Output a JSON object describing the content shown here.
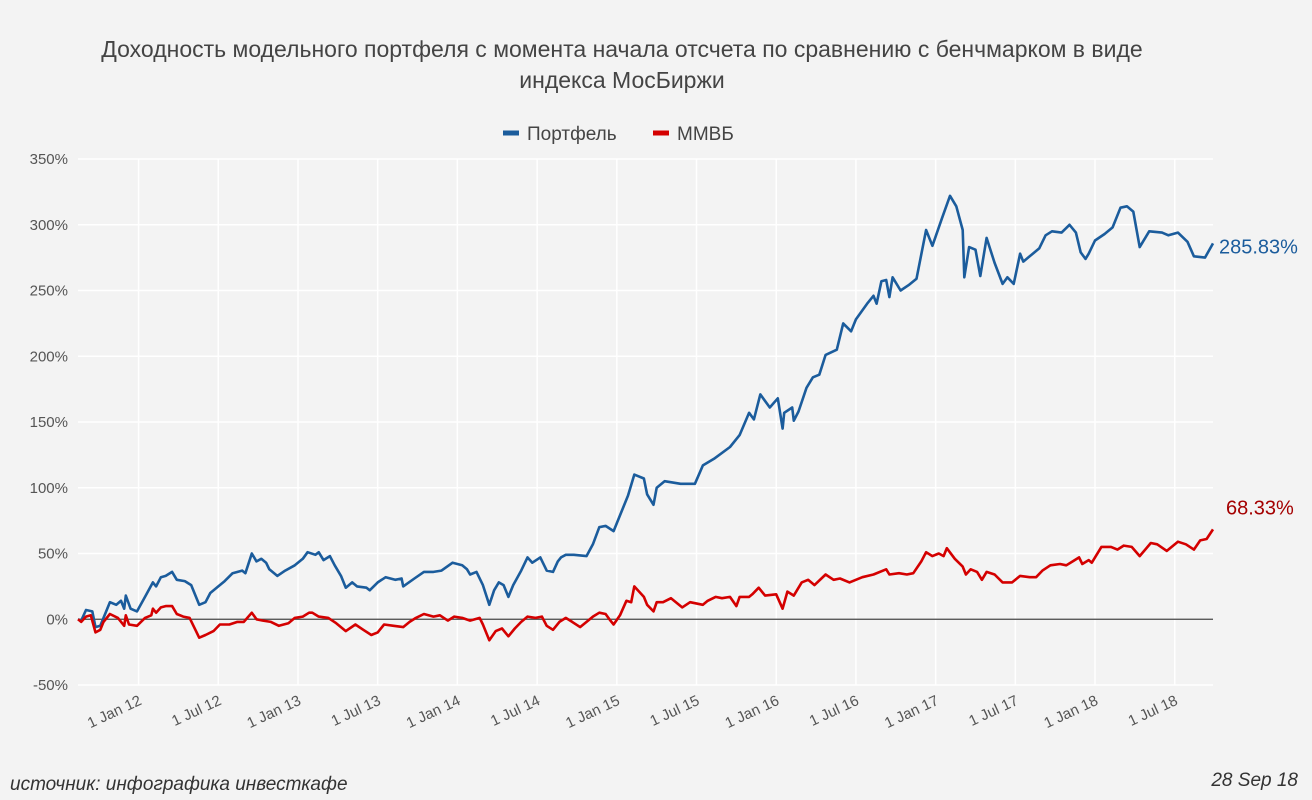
{
  "chart_data": {
    "type": "line",
    "title_lines": [
      "Доходность модельного портфеля с момента начала отсчета по сравнению с бенчмарком в виде",
      "индекса МосБиржи"
    ],
    "xlabel": "",
    "ylabel": "",
    "x_unit": "decimal year",
    "xlim": [
      2011.62,
      2018.74
    ],
    "ylim": [
      -50,
      350
    ],
    "yticks": [
      -50,
      0,
      50,
      100,
      150,
      200,
      250,
      300,
      350
    ],
    "ytick_labels": [
      "-50%",
      "0%",
      "50%",
      "100%",
      "150%",
      "200%",
      "250%",
      "300%",
      "350%"
    ],
    "xticks": [
      2012.0,
      2012.5,
      2013.0,
      2013.5,
      2014.0,
      2014.5,
      2015.0,
      2015.5,
      2016.0,
      2016.5,
      2017.0,
      2017.5,
      2018.0,
      2018.5
    ],
    "xtick_labels": [
      "1 Jan 12",
      "1 Jul 12",
      "1 Jan 13",
      "1 Jul 13",
      "1 Jan 14",
      "1 Jul 14",
      "1 Jan 15",
      "1 Jul 15",
      "1 Jan 16",
      "1 Jul 16",
      "1 Jan 17",
      "1 Jul 17",
      "1 Jan 18",
      "1 Jul 18"
    ],
    "grid": true,
    "legend_position": "top-center",
    "series": [
      {
        "name": "Портфель",
        "color": "#1b5c9c",
        "end_label": "285.83%",
        "x": [
          2011.62,
          2011.64,
          2011.67,
          2011.71,
          2011.73,
          2011.76,
          2011.82,
          2011.86,
          2011.89,
          2011.91,
          2011.92,
          2011.95,
          2011.99,
          2012.04,
          2012.09,
          2012.11,
          2012.14,
          2012.17,
          2012.21,
          2012.24,
          2012.29,
          2012.33,
          2012.38,
          2012.42,
          2012.45,
          2012.5,
          2012.54,
          2012.59,
          2012.65,
          2012.67,
          2012.71,
          2012.74,
          2012.77,
          2012.8,
          2012.82,
          2012.87,
          2012.92,
          2012.98,
          2013.03,
          2013.06,
          2013.11,
          2013.13,
          2013.16,
          2013.2,
          2013.23,
          2013.27,
          2013.3,
          2013.34,
          2013.37,
          2013.43,
          2013.45,
          2013.5,
          2013.55,
          2013.61,
          2013.65,
          2013.66,
          2013.73,
          2013.79,
          2013.85,
          2013.9,
          2013.97,
          2014.03,
          2014.06,
          2014.08,
          2014.12,
          2014.16,
          2014.2,
          2014.23,
          2014.26,
          2014.29,
          2014.32,
          2014.35,
          2014.4,
          2014.44,
          2014.47,
          2014.52,
          2014.56,
          2014.6,
          2014.63,
          2014.65,
          2014.68,
          2014.73,
          2014.81,
          2014.85,
          2014.89,
          2014.93,
          2014.98,
          2015.03,
          2015.07,
          2015.11,
          2015.17,
          2015.19,
          2015.23,
          2015.25,
          2015.3,
          2015.4,
          2015.49,
          2015.54,
          2015.61,
          2015.71,
          2015.77,
          2015.83,
          2015.86,
          2015.9,
          2015.96,
          2016.01,
          2016.04,
          2016.05,
          2016.1,
          2016.11,
          2016.14,
          2016.19,
          2016.23,
          2016.27,
          2016.31,
          2016.38,
          2016.42,
          2016.47,
          2016.5,
          2016.57,
          2016.61,
          2016.63,
          2016.66,
          2016.69,
          2016.71,
          2016.73,
          2016.78,
          2016.83,
          2016.88,
          2016.94,
          2016.98,
          2017.04,
          2017.09,
          2017.13,
          2017.17,
          2017.18,
          2017.21,
          2017.25,
          2017.28,
          2017.32,
          2017.37,
          2017.42,
          2017.45,
          2017.49,
          2017.53,
          2017.55,
          2017.59,
          2017.65,
          2017.69,
          2017.73,
          2017.79,
          2017.84,
          2017.88,
          2017.91,
          2017.94,
          2017.96,
          2018.0,
          2018.06,
          2018.11,
          2018.16,
          2018.2,
          2018.24,
          2018.28,
          2018.34,
          2018.42,
          2018.46,
          2018.52,
          2018.58,
          2018.62,
          2018.69,
          2018.74
        ],
        "y": [
          0,
          -1,
          7,
          6,
          -6,
          -5,
          13,
          11,
          14,
          8,
          18,
          8,
          6,
          17,
          28,
          25,
          32,
          33,
          36,
          30,
          29,
          26,
          11,
          13,
          20,
          25,
          29,
          35,
          37,
          35,
          50,
          44,
          46,
          43,
          38,
          33,
          37,
          41,
          46,
          51,
          49,
          51,
          45,
          48,
          41,
          33,
          24,
          28,
          25,
          24,
          22,
          28,
          32,
          30,
          31,
          25,
          31,
          36,
          36,
          37,
          43,
          41,
          38,
          34,
          36,
          26,
          11,
          22,
          28,
          26,
          17,
          26,
          37,
          47,
          43,
          47,
          37,
          36,
          44,
          47,
          49,
          49,
          48,
          57,
          70,
          71,
          67,
          82,
          94,
          110,
          107,
          95,
          87,
          100,
          105,
          103,
          103,
          117,
          122,
          131,
          140,
          157,
          152,
          171,
          161,
          168,
          145,
          157,
          161,
          151,
          158,
          176,
          184,
          186,
          201,
          205,
          225,
          219,
          228,
          240,
          246,
          240,
          257,
          258,
          245,
          260,
          250,
          254,
          259,
          296,
          284,
          305,
          322,
          314,
          296,
          260,
          283,
          281,
          261,
          290,
          271,
          255,
          260,
          255,
          278,
          272,
          276,
          282,
          292,
          295,
          294,
          300,
          294,
          279,
          274,
          278,
          288,
          293,
          298,
          313,
          314,
          310,
          283,
          295,
          294,
          292,
          294,
          287,
          276,
          275,
          285.83
        ]
      },
      {
        "name": "ММВБ",
        "color": "#d40000",
        "end_label": "68.33%",
        "end_label_color": "#a40000",
        "x": [
          2011.62,
          2011.64,
          2011.67,
          2011.7,
          2011.73,
          2011.76,
          2011.78,
          2011.82,
          2011.87,
          2011.91,
          2011.92,
          2011.94,
          2011.99,
          2012.04,
          2012.08,
          2012.09,
          2012.11,
          2012.14,
          2012.17,
          2012.21,
          2012.24,
          2012.28,
          2012.32,
          2012.36,
          2012.38,
          2012.42,
          2012.47,
          2012.51,
          2012.57,
          2012.62,
          2012.66,
          2012.71,
          2012.74,
          2012.78,
          2012.83,
          2012.88,
          2012.94,
          2012.98,
          2013.03,
          2013.07,
          2013.09,
          2013.13,
          2013.19,
          2013.24,
          2013.3,
          2013.36,
          2013.41,
          2013.46,
          2013.5,
          2013.54,
          2013.6,
          2013.66,
          2013.7,
          2013.74,
          2013.79,
          2013.85,
          2013.89,
          2013.94,
          2013.98,
          2014.03,
          2014.08,
          2014.14,
          2014.16,
          2014.2,
          2014.24,
          2014.28,
          2014.32,
          2014.36,
          2014.4,
          2014.44,
          2014.49,
          2014.53,
          2014.56,
          2014.6,
          2014.64,
          2014.68,
          2014.72,
          2014.77,
          2014.82,
          2014.85,
          2014.89,
          2014.93,
          2014.96,
          2014.98,
          2015.02,
          2015.06,
          2015.09,
          2015.11,
          2015.14,
          2015.17,
          2015.19,
          2015.23,
          2015.25,
          2015.29,
          2015.34,
          2015.41,
          2015.46,
          2015.54,
          2015.57,
          2015.62,
          2015.66,
          2015.71,
          2015.75,
          2015.77,
          2015.83,
          2015.85,
          2015.89,
          2015.93,
          2016.0,
          2016.04,
          2016.07,
          2016.11,
          2016.16,
          2016.2,
          2016.24,
          2016.31,
          2016.36,
          2016.4,
          2016.46,
          2016.54,
          2016.61,
          2016.69,
          2016.71,
          2016.77,
          2016.82,
          2016.86,
          2016.91,
          2016.94,
          2016.98,
          2017.02,
          2017.05,
          2017.07,
          2017.12,
          2017.17,
          2017.19,
          2017.22,
          2017.26,
          2017.29,
          2017.32,
          2017.37,
          2017.42,
          2017.48,
          2017.53,
          2017.59,
          2017.63,
          2017.67,
          2017.72,
          2017.78,
          2017.82,
          2017.86,
          2017.9,
          2017.92,
          2017.96,
          2017.98,
          2018.04,
          2018.1,
          2018.14,
          2018.18,
          2018.23,
          2018.28,
          2018.35,
          2018.39,
          2018.45,
          2018.52,
          2018.57,
          2018.62,
          2018.66,
          2018.7,
          2018.74
        ],
        "y": [
          0,
          -2,
          2,
          3,
          -10,
          -8,
          -2,
          4,
          1,
          -5,
          3,
          -4,
          -5,
          1,
          3,
          8,
          5,
          9,
          10,
          10,
          4,
          2,
          1,
          -9,
          -14,
          -12,
          -9,
          -4,
          -4,
          -2,
          -2,
          5,
          0,
          -1,
          -2,
          -5,
          -3,
          1,
          2,
          5,
          5,
          2,
          1,
          -3,
          -9,
          -4,
          -8,
          -12,
          -10,
          -4,
          -5,
          -6,
          -2,
          1,
          4,
          2,
          3,
          -1,
          2,
          1,
          -1,
          1,
          -4,
          -16,
          -9,
          -7,
          -13,
          -7,
          -2,
          2,
          1,
          2,
          -5,
          -8,
          -2,
          1,
          -2,
          -6,
          -1,
          2,
          5,
          4,
          -1,
          -4,
          3,
          14,
          13,
          25,
          21,
          17,
          11,
          6,
          13,
          13,
          16,
          9,
          13,
          11,
          14,
          17,
          16,
          17,
          10,
          17,
          17,
          19,
          24,
          18,
          19,
          8,
          21,
          18,
          28,
          30,
          26,
          34,
          30,
          31,
          28,
          32,
          34,
          38,
          34,
          35,
          34,
          35,
          44,
          51,
          48,
          50,
          48,
          54,
          46,
          40,
          34,
          38,
          36,
          30,
          36,
          34,
          28,
          28,
          33,
          32,
          32,
          37,
          41,
          42,
          41,
          44,
          47,
          42,
          45,
          43,
          55,
          55,
          53,
          56,
          55,
          48,
          58,
          57,
          52,
          59,
          57,
          53,
          60,
          61,
          68.33
        ]
      }
    ]
  },
  "footer": {
    "source": "источник: инфографика инвесткафе",
    "date": "28 Sep 18"
  }
}
